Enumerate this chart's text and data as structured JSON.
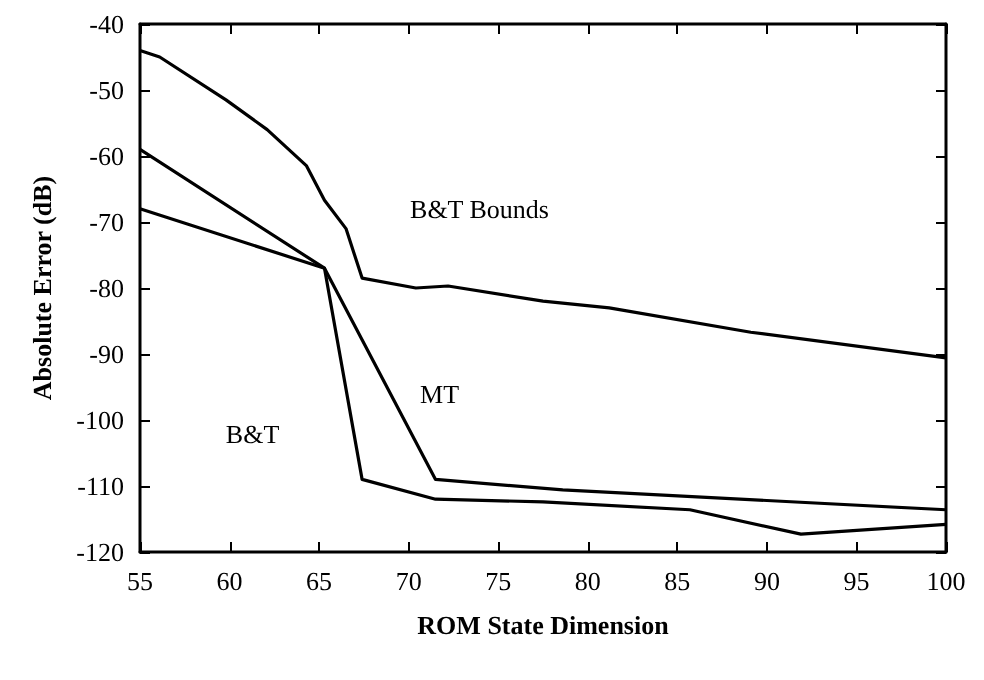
{
  "chart_data": {
    "type": "line",
    "xlabel": "ROM State Dimension",
    "ylabel": "Absolute Error (dB)",
    "xlim": [
      55,
      100
    ],
    "xticks": [
      55,
      60,
      65,
      70,
      75,
      80,
      85,
      90,
      95,
      100
    ],
    "ylim": [
      -120,
      -40
    ],
    "yticks": [
      -120,
      -110,
      -100,
      -90,
      -80,
      -70,
      -60,
      -50,
      -40
    ],
    "grid": false,
    "legend": false,
    "marker": "none",
    "line_style": "solid",
    "series": [
      {
        "name": "B&T Bounds",
        "color": "#000000",
        "x": [
          55,
          56.1,
          59.8,
          62.1,
          64.3,
          65.3,
          66.5,
          67.4,
          70.4,
          72.2,
          77.5,
          81.2,
          89.1,
          100
        ],
        "values": [
          -44,
          -45,
          -51.5,
          -56,
          -61.5,
          -66.7,
          -71,
          -78.5,
          -80,
          -79.7,
          -82,
          -83,
          -86.7,
          -90.6
        ]
      },
      {
        "name": "B&T",
        "color": "#000000",
        "x": [
          55,
          65.3,
          67.4,
          71.5,
          77.5,
          85.7,
          91.9,
          100
        ],
        "values": [
          -59,
          -77,
          -109,
          -112,
          -112.4,
          -113.6,
          -117.3,
          -115.8
        ]
      },
      {
        "name": "MT",
        "color": "#000000",
        "x": [
          55,
          65.3,
          71.5,
          78.6,
          100
        ],
        "values": [
          -68,
          -77,
          -109,
          -110.6,
          -113.6
        ]
      }
    ]
  }
}
